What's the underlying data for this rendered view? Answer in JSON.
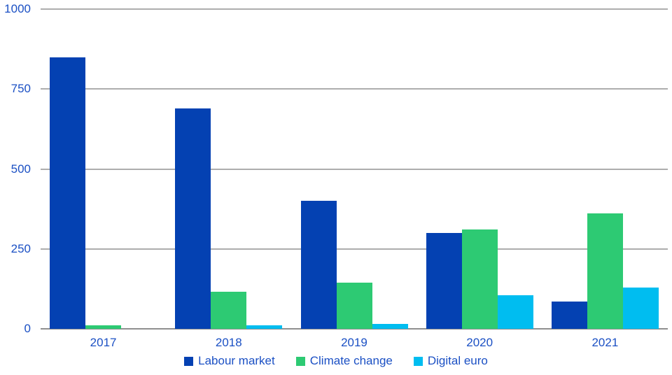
{
  "chart_data": {
    "type": "bar",
    "title": "",
    "xlabel": "",
    "ylabel": "",
    "categories": [
      "2017",
      "2018",
      "2019",
      "2020",
      "2021"
    ],
    "series": [
      {
        "name": "Labour market",
        "color": "#0441B2",
        "values": [
          850,
          690,
          400,
          300,
          85
        ]
      },
      {
        "name": "Climate change",
        "color": "#2DCA73",
        "values": [
          10,
          115,
          145,
          310,
          360
        ]
      },
      {
        "name": "Digital euro",
        "color": "#00BDF0",
        "values": [
          0,
          10,
          15,
          105,
          130
        ]
      }
    ],
    "ylim": [
      0,
      1000
    ],
    "yticks": [
      0,
      250,
      500,
      750,
      1000
    ],
    "ytick_labels": [
      "0",
      "250",
      "500",
      "750",
      "1000"
    ],
    "grid": true,
    "legend_position": "bottom"
  },
  "colors": {
    "axis_text": "#1B50C4",
    "gridline": "#ADADAD",
    "axis_line": "#8F8F8F",
    "background": "#FFFFFF"
  }
}
